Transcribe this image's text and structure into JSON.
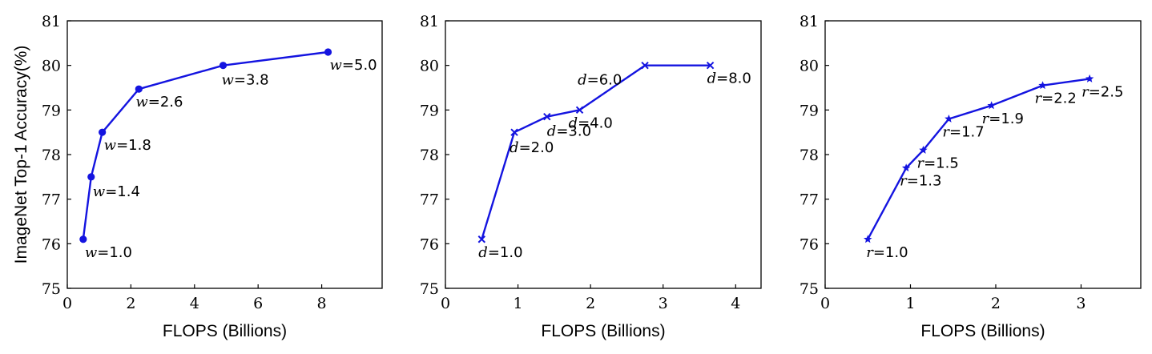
{
  "colors": {
    "series": "#1414e0",
    "axis": "#000000"
  },
  "chart_data": [
    {
      "type": "line",
      "title": "",
      "xlabel": "FLOPS (Billions)",
      "ylabel": "ImageNet Top-1 Accuracy(%)",
      "xlim": [
        0,
        9.9
      ],
      "ylim": [
        75,
        81
      ],
      "xticks": [
        0,
        2,
        4,
        6,
        8
      ],
      "yticks": [
        75,
        76,
        77,
        78,
        79,
        80,
        81
      ],
      "marker": "circle",
      "var": "w",
      "series": [
        {
          "x": [
            0.5,
            0.75,
            1.1,
            2.25,
            4.9,
            8.2
          ],
          "y": [
            76.1,
            77.5,
            78.5,
            79.47,
            80.0,
            80.3
          ],
          "labels": [
            "1.0",
            "1.4",
            "1.8",
            "2.6",
            "3.8",
            "5.0"
          ]
        }
      ]
    },
    {
      "type": "line",
      "title": "",
      "xlabel": "FLOPS (Billions)",
      "ylabel": "",
      "xlim": [
        0,
        4.35
      ],
      "ylim": [
        75,
        81
      ],
      "xticks": [
        0,
        1,
        2,
        3,
        4
      ],
      "yticks": [
        75,
        76,
        77,
        78,
        79,
        80,
        81
      ],
      "marker": "x",
      "var": "d",
      "series": [
        {
          "x": [
            0.5,
            0.95,
            1.4,
            1.85,
            2.75,
            3.65
          ],
          "y": [
            76.1,
            78.5,
            78.85,
            79.0,
            80.0,
            80.0
          ],
          "labels": [
            "1.0",
            "2.0",
            "3.0",
            "4.0",
            "6.0",
            "8.0"
          ]
        }
      ]
    },
    {
      "type": "line",
      "title": "",
      "xlabel": "FLOPS (Billions)",
      "ylabel": "",
      "xlim": [
        0,
        3.7
      ],
      "ylim": [
        75,
        81
      ],
      "xticks": [
        0,
        1,
        2,
        3
      ],
      "yticks": [
        75,
        76,
        77,
        78,
        79,
        80,
        81
      ],
      "marker": "star",
      "var": "r",
      "series": [
        {
          "x": [
            0.5,
            0.95,
            1.15,
            1.45,
            1.95,
            2.55,
            3.1
          ],
          "y": [
            76.1,
            77.7,
            78.1,
            78.8,
            79.1,
            79.55,
            79.7
          ],
          "labels": [
            "1.0",
            "1.3",
            "1.5",
            "1.7",
            "1.9",
            "2.2",
            "2.5"
          ]
        }
      ]
    }
  ]
}
